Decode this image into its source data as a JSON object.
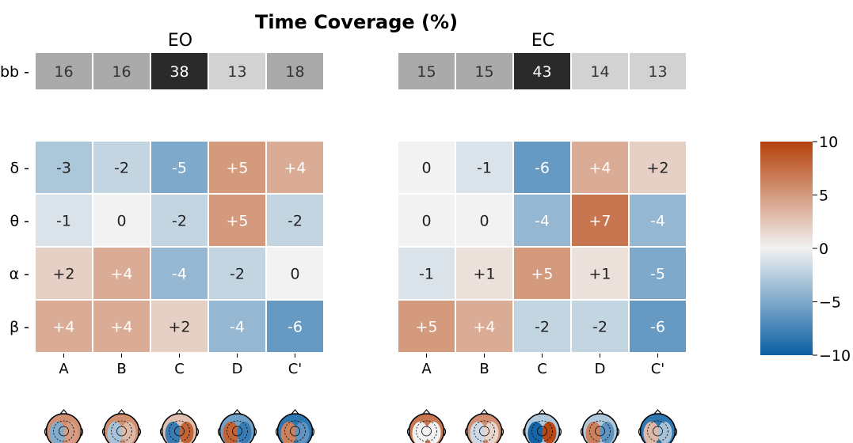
{
  "chart_data": {
    "type": "heatmap",
    "title": "Time Coverage (%)",
    "panels": [
      {
        "name": "EO",
        "columns": [
          "A",
          "B",
          "C",
          "D",
          "C'"
        ],
        "bb": {
          "row_label": "bb",
          "values": [
            16,
            16,
            38,
            13,
            18
          ],
          "labels": [
            "16",
            "16",
            "38",
            "13",
            "18"
          ]
        },
        "rows": [
          "δ",
          "θ",
          "α",
          "β"
        ],
        "values": [
          [
            -3,
            -2,
            -5,
            5,
            4
          ],
          [
            -1,
            0,
            -2,
            5,
            -2
          ],
          [
            2,
            4,
            -4,
            -2,
            0
          ],
          [
            4,
            4,
            2,
            -4,
            -6
          ]
        ],
        "labels": [
          [
            "-3",
            "-2",
            "-5",
            "+5",
            "+4"
          ],
          [
            "-1",
            "0",
            "-2",
            "+5",
            "-2"
          ],
          [
            "+2",
            "+4",
            "-4",
            "-2",
            "0"
          ],
          [
            "+4",
            "+4",
            "+2",
            "-4",
            "-6"
          ]
        ]
      },
      {
        "name": "EC",
        "columns": [
          "A",
          "B",
          "C",
          "D",
          "C'"
        ],
        "bb": {
          "row_label": "",
          "values": [
            15,
            15,
            43,
            14,
            13
          ],
          "labels": [
            "15",
            "15",
            "43",
            "14",
            "13"
          ]
        },
        "rows": [
          "",
          "",
          "",
          ""
        ],
        "values": [
          [
            0,
            -1,
            -6,
            4,
            2
          ],
          [
            0,
            0,
            -4,
            7,
            -4
          ],
          [
            -1,
            1,
            5,
            1,
            -5
          ],
          [
            5,
            4,
            -2,
            -2,
            -6
          ]
        ],
        "labels": [
          [
            "0",
            "-1",
            "-6",
            "+4",
            "+2"
          ],
          [
            "0",
            "0",
            "-4",
            "+7",
            "-4"
          ],
          [
            "-1",
            "+1",
            "+5",
            "+1",
            "-5"
          ],
          [
            "+5",
            "+4",
            "-2",
            "-2",
            "-6"
          ]
        ]
      }
    ],
    "colorbar": {
      "range": [
        -10,
        10
      ],
      "ticks": [
        10,
        5,
        0,
        -5,
        -10
      ],
      "tick_labels": [
        "10",
        "5",
        "0",
        "−5",
        "−10"
      ],
      "colormap": "diverging blue-white-orange",
      "colors": {
        "low": "#0a5fa3",
        "mid": "#f2f2f2",
        "high": "#b5410a"
      }
    },
    "topomaps": "row of scalp topography maps under each column",
    "grid": false
  }
}
